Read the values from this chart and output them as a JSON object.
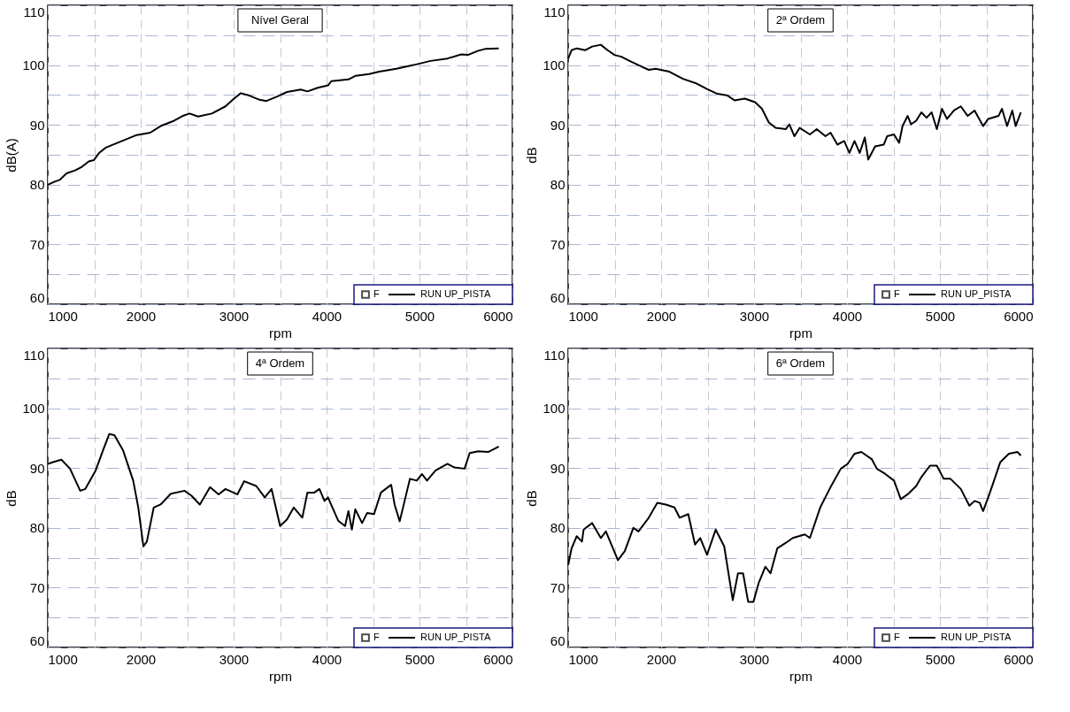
{
  "chart_data": [
    {
      "type": "line",
      "title": "Nível Geral",
      "xlabel": "rpm",
      "ylabel": "dB(A)",
      "xlim": [
        1000,
        6000
      ],
      "ylim": [
        60,
        110
      ],
      "xticks": [
        1000,
        {
          "value": 1500,
          "label": null
        },
        2000,
        {
          "value": 2500,
          "label": null
        },
        3000,
        {
          "value": 3500,
          "label": null
        },
        4000,
        {
          "value": 4500,
          "label": null
        },
        5000,
        {
          "value": 5500,
          "label": null
        },
        6000
      ],
      "yticks": [
        60,
        {
          "value": 65,
          "label": null
        },
        70,
        {
          "value": 75,
          "label": null
        },
        80,
        {
          "value": 85,
          "label": null
        },
        90,
        {
          "value": 95,
          "label": null
        },
        100,
        {
          "value": 105,
          "label": null
        },
        110
      ],
      "grid": true,
      "legend": "bottom right",
      "series": [
        {
          "name": "F",
          "type": "scatter",
          "marker": "square",
          "color": "#000000"
        },
        {
          "name": "RUN UP_PISTA",
          "color": "#000000",
          "x": [
            1000,
            1074,
            1129,
            1202,
            1294,
            1368,
            1441,
            1496,
            1551,
            1625,
            1735,
            1846,
            1956,
            2103,
            2213,
            2360,
            2452,
            2526,
            2618,
            2765,
            2912,
            3004,
            3077,
            3169,
            3279,
            3353,
            3463,
            3574,
            3721,
            3794,
            3904,
            4015,
            4051,
            4235,
            4309,
            4456,
            4566,
            4750,
            4934,
            5118,
            5301,
            5449,
            5522,
            5632,
            5706,
            5853
          ],
          "values": [
            80.0,
            80.5,
            80.8,
            81.9,
            82.4,
            83.0,
            83.9,
            84.1,
            85.3,
            86.2,
            86.9,
            87.6,
            88.3,
            88.7,
            89.8,
            90.7,
            91.5,
            91.9,
            91.4,
            91.9,
            93.1,
            94.4,
            95.3,
            94.9,
            94.2,
            94.0,
            94.7,
            95.5,
            95.9,
            95.6,
            96.2,
            96.6,
            97.3,
            97.6,
            98.2,
            98.5,
            98.9,
            99.4,
            100.0,
            100.7,
            101.1,
            101.8,
            101.7,
            102.4,
            102.7,
            102.8
          ]
        }
      ]
    },
    {
      "type": "line",
      "title": "2ª Ordem",
      "xlabel": "rpm",
      "ylabel": "dB",
      "xlim": [
        1000,
        6000
      ],
      "ylim": [
        60,
        110
      ],
      "xticks": [
        1000,
        {
          "value": 1500,
          "label": null
        },
        2000,
        {
          "value": 2500,
          "label": null
        },
        3000,
        {
          "value": 3500,
          "label": null
        },
        4000,
        {
          "value": 4500,
          "label": null
        },
        5000,
        {
          "value": 5500,
          "label": null
        },
        6000
      ],
      "yticks": [
        60,
        {
          "value": 65,
          "label": null
        },
        70,
        {
          "value": 75,
          "label": null
        },
        80,
        {
          "value": 85,
          "label": null
        },
        90,
        {
          "value": 95,
          "label": null
        },
        100,
        {
          "value": 105,
          "label": null
        },
        110
      ],
      "grid": true,
      "legend": "bottom right",
      "series": [
        {
          "name": "F",
          "type": "scatter",
          "marker": "square",
          "color": "#000000"
        },
        {
          "name": "RUN UP_PISTA",
          "color": "#000000",
          "x": [
            1000,
            1037,
            1092,
            1185,
            1258,
            1351,
            1424,
            1498,
            1572,
            1646,
            1756,
            1867,
            1941,
            2089,
            2236,
            2384,
            2494,
            2605,
            2716,
            2790,
            2900,
            3011,
            3085,
            3159,
            3232,
            3343,
            3380,
            3435,
            3491,
            3601,
            3675,
            3768,
            3823,
            3897,
            3970,
            4026,
            4081,
            4137,
            4192,
            4229,
            4303,
            4395,
            4432,
            4506,
            4561,
            4598,
            4653,
            4690,
            4745,
            4801,
            4856,
            4911,
            4967,
            5022,
            5077,
            5151,
            5225,
            5299,
            5373,
            5465,
            5520,
            5631,
            5668,
            5723,
            5779,
            5815,
            5871
          ],
          "values": [
            101.1,
            102.5,
            102.8,
            102.5,
            103.1,
            103.4,
            102.5,
            101.7,
            101.4,
            100.8,
            100.0,
            99.2,
            99.4,
            98.9,
            97.7,
            96.9,
            96.0,
            95.2,
            94.9,
            94.1,
            94.4,
            93.8,
            92.7,
            90.4,
            89.5,
            89.3,
            90.1,
            88.1,
            89.5,
            88.4,
            89.3,
            88.1,
            88.7,
            86.7,
            87.3,
            85.3,
            87.3,
            85.3,
            87.9,
            84.2,
            86.4,
            86.7,
            88.1,
            88.4,
            87.0,
            89.8,
            91.5,
            90.1,
            90.7,
            92.1,
            91.2,
            92.1,
            89.3,
            92.7,
            91.0,
            92.4,
            93.1,
            91.5,
            92.4,
            89.8,
            91.0,
            91.5,
            92.7,
            89.8,
            92.4,
            89.8,
            92.1
          ]
        }
      ]
    },
    {
      "type": "line",
      "title": "4ª Ordem",
      "xlabel": "rpm",
      "ylabel": "dB",
      "xlim": [
        1000,
        6000
      ],
      "ylim": [
        60,
        110
      ],
      "xticks": [
        1000,
        {
          "value": 1500,
          "label": null
        },
        2000,
        {
          "value": 2500,
          "label": null
        },
        3000,
        {
          "value": 3500,
          "label": null
        },
        4000,
        {
          "value": 4500,
          "label": null
        },
        5000,
        {
          "value": 5500,
          "label": null
        },
        6000
      ],
      "yticks": [
        60,
        {
          "value": 65,
          "label": null
        },
        70,
        {
          "value": 75,
          "label": null
        },
        80,
        {
          "value": 85,
          "label": null
        },
        90,
        {
          "value": 95,
          "label": null
        },
        100,
        {
          "value": 105,
          "label": null
        },
        110
      ],
      "grid": true,
      "legend": "bottom right",
      "series": [
        {
          "name": "F",
          "type": "scatter",
          "marker": "square",
          "color": "#000000"
        },
        {
          "name": "RUN UP_PISTA",
          "color": "#000000",
          "x": [
            1000,
            1055,
            1147,
            1239,
            1349,
            1404,
            1515,
            1607,
            1662,
            1717,
            1809,
            1919,
            1974,
            2029,
            2066,
            2140,
            2213,
            2324,
            2471,
            2544,
            2636,
            2746,
            2838,
            2912,
            3040,
            3114,
            3243,
            3335,
            3408,
            3500,
            3574,
            3647,
            3739,
            3794,
            3868,
            3923,
            3978,
            4015,
            4125,
            4199,
            4235,
            4272,
            4309,
            4382,
            4437,
            4511,
            4585,
            4695,
            4732,
            4787,
            4897,
            4971,
            5026,
            5081,
            5173,
            5301,
            5375,
            5485,
            5540,
            5632,
            5743,
            5853
          ],
          "values": [
            90.7,
            91.0,
            91.4,
            89.9,
            86.2,
            86.5,
            89.6,
            93.5,
            95.7,
            95.5,
            93.0,
            87.9,
            83.4,
            76.9,
            77.7,
            83.4,
            83.9,
            85.7,
            86.2,
            85.4,
            83.9,
            86.8,
            85.6,
            86.5,
            85.6,
            87.8,
            87.0,
            85.1,
            86.5,
            80.3,
            81.4,
            83.4,
            81.7,
            85.9,
            85.9,
            86.5,
            84.5,
            85.1,
            81.2,
            80.3,
            82.8,
            79.7,
            83.1,
            80.8,
            82.5,
            82.3,
            85.9,
            87.2,
            83.9,
            81.1,
            88.2,
            87.9,
            89.0,
            87.9,
            89.6,
            90.7,
            90.1,
            89.9,
            92.5,
            92.8,
            92.7,
            93.6
          ]
        }
      ]
    },
    {
      "type": "line",
      "title": "6ª Ordem",
      "xlabel": "rpm",
      "ylabel": "dB",
      "xlim": [
        1000,
        6000
      ],
      "ylim": [
        60,
        110
      ],
      "xticks": [
        1000,
        {
          "value": 1500,
          "label": null
        },
        2000,
        {
          "value": 2500,
          "label": null
        },
        3000,
        {
          "value": 3500,
          "label": null
        },
        4000,
        {
          "value": 4500,
          "label": null
        },
        5000,
        {
          "value": 5500,
          "label": null
        },
        6000
      ],
      "yticks": [
        60,
        {
          "value": 65,
          "label": null
        },
        70,
        {
          "value": 75,
          "label": null
        },
        80,
        {
          "value": 85,
          "label": null
        },
        90,
        {
          "value": 95,
          "label": null
        },
        100,
        {
          "value": 105,
          "label": null
        },
        110
      ],
      "grid": true,
      "legend": "bottom right",
      "series": [
        {
          "name": "F",
          "type": "scatter",
          "marker": "square",
          "color": "#000000"
        },
        {
          "name": "RUN UP_PISTA",
          "color": "#000000",
          "x": [
            1000,
            1037,
            1092,
            1148,
            1166,
            1258,
            1351,
            1406,
            1535,
            1609,
            1701,
            1756,
            1867,
            1959,
            2052,
            2144,
            2199,
            2292,
            2365,
            2421,
            2494,
            2587,
            2679,
            2771,
            2827,
            2882,
            2937,
            2993,
            3048,
            3122,
            3177,
            3251,
            3343,
            3417,
            3546,
            3601,
            3712,
            3823,
            3934,
            4007,
            4081,
            4155,
            4266,
            4321,
            4413,
            4506,
            4579,
            4653,
            4745,
            4801,
            4893,
            4967,
            5041,
            5114,
            5225,
            5317,
            5373,
            5428,
            5465,
            5520,
            5576,
            5650,
            5742,
            5834,
            5871
          ],
          "values": [
            73.8,
            76.6,
            78.6,
            77.7,
            79.7,
            80.8,
            78.3,
            79.4,
            74.6,
            76.1,
            80.0,
            79.4,
            81.7,
            84.2,
            83.9,
            83.4,
            81.7,
            82.3,
            77.2,
            78.3,
            75.5,
            79.7,
            76.9,
            67.9,
            72.4,
            72.4,
            67.6,
            67.6,
            70.7,
            73.5,
            72.4,
            76.6,
            77.5,
            78.3,
            78.9,
            78.3,
            83.4,
            86.8,
            89.9,
            90.7,
            92.4,
            92.7,
            91.5,
            89.9,
            89.0,
            87.9,
            84.8,
            85.6,
            87.0,
            88.5,
            90.4,
            90.4,
            88.2,
            88.2,
            86.5,
            83.7,
            84.5,
            84.2,
            82.8,
            85.1,
            87.6,
            91.0,
            92.4,
            92.7,
            92.1
          ]
        }
      ]
    }
  ]
}
